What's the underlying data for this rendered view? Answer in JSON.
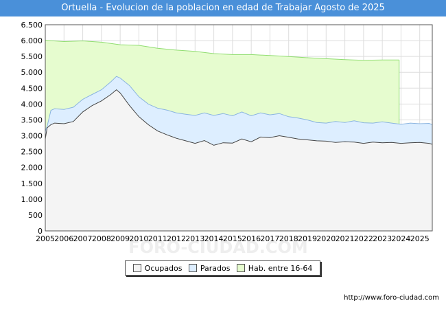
{
  "title": "Ortuella - Evolucion de la poblacion en edad de Trabajar Agosto de 2025",
  "source": "http://www.foro-ciudad.com",
  "watermark": "FORO-CIUDAD.COM",
  "chart_data": {
    "type": "area",
    "title": "Ortuella - Evolucion de la poblacion en edad de Trabajar Agosto de 2025",
    "xlabel": "",
    "ylabel": "",
    "xlim": [
      2005,
      2025.67
    ],
    "ylim": [
      0,
      6500
    ],
    "yticks": [
      0,
      500,
      1000,
      1500,
      2000,
      2500,
      3000,
      3500,
      4000,
      4500,
      5000,
      5500,
      6000,
      6500
    ],
    "ytick_labels": [
      "0",
      "500",
      "1.000",
      "1.500",
      "2.000",
      "2.500",
      "3.000",
      "3.500",
      "4.000",
      "4.500",
      "5.000",
      "5.500",
      "6.000",
      "6.500"
    ],
    "xticks": [
      2005,
      2006,
      2007,
      2008,
      2009,
      2010,
      2011,
      2012,
      2013,
      2014,
      2015,
      2016,
      2017,
      2018,
      2019,
      2020,
      2021,
      2022,
      2023,
      2024,
      2025
    ],
    "xtick_labels": [
      "2005",
      "2006",
      "2007",
      "2008",
      "2009",
      "2010",
      "2011",
      "2012",
      "2013",
      "2014",
      "2015",
      "2016",
      "2017",
      "2018",
      "2019",
      "2020",
      "2021",
      "2022",
      "2023",
      "2024",
      "2025"
    ],
    "grid": true,
    "legend_position": "bottom",
    "colors": {
      "hab_fill": "#e6fccf",
      "hab_line": "#90dd70",
      "parados_fill": "#ddeeff",
      "parados_line": "#8ab4e0",
      "ocupados_fill": "#f4f4f4",
      "ocupados_line": "#444444"
    },
    "series": [
      {
        "name": "Hab. entre 16-64",
        "x": [
          2005,
          2006,
          2007,
          2008,
          2009,
          2010,
          2011,
          2012,
          2013,
          2014,
          2015,
          2016,
          2017,
          2018,
          2019,
          2020,
          2021,
          2022,
          2023,
          2023.9
        ],
        "values": [
          6010,
          5970,
          5990,
          5950,
          5870,
          5850,
          5760,
          5700,
          5660,
          5590,
          5560,
          5560,
          5530,
          5500,
          5460,
          5430,
          5400,
          5380,
          5390,
          5390
        ]
      },
      {
        "name": "Parados",
        "x": [
          2005,
          2005.1,
          2005.3,
          2005.5,
          2006,
          2006.5,
          2007,
          2007.5,
          2008,
          2008.5,
          2008.8,
          2009,
          2009.5,
          2010,
          2010.5,
          2011,
          2011.5,
          2012,
          2012.5,
          2013,
          2013.5,
          2014,
          2014.5,
          2015,
          2015.5,
          2016,
          2016.5,
          2017,
          2017.5,
          2018,
          2018.5,
          2019,
          2019.5,
          2020,
          2020.5,
          2021,
          2021.5,
          2022,
          2022.5,
          2023,
          2023.5,
          2024,
          2024.5,
          2025,
          2025.5,
          2025.67
        ],
        "values": [
          3150,
          3300,
          3800,
          3850,
          3830,
          3900,
          4150,
          4300,
          4450,
          4700,
          4870,
          4820,
          4580,
          4230,
          4000,
          3870,
          3810,
          3720,
          3680,
          3640,
          3720,
          3640,
          3700,
          3630,
          3750,
          3630,
          3720,
          3660,
          3700,
          3600,
          3560,
          3500,
          3420,
          3400,
          3450,
          3420,
          3470,
          3410,
          3400,
          3440,
          3400,
          3360,
          3400,
          3380,
          3390,
          3350
        ]
      },
      {
        "name": "Ocupados",
        "x": [
          2005,
          2005.1,
          2005.3,
          2005.5,
          2006,
          2006.5,
          2007,
          2007.5,
          2008,
          2008.5,
          2008.8,
          2009,
          2009.5,
          2010,
          2010.5,
          2011,
          2011.5,
          2012,
          2012.5,
          2013,
          2013.5,
          2014,
          2014.5,
          2015,
          2015.5,
          2016,
          2016.5,
          2017,
          2017.5,
          2018,
          2018.5,
          2019,
          2019.5,
          2020,
          2020.5,
          2021,
          2021.5,
          2022,
          2022.5,
          2023,
          2023.5,
          2024,
          2024.5,
          2025,
          2025.5,
          2025.67
        ],
        "values": [
          2900,
          3250,
          3350,
          3400,
          3380,
          3450,
          3750,
          3950,
          4100,
          4300,
          4450,
          4350,
          3950,
          3600,
          3350,
          3150,
          3030,
          2920,
          2840,
          2760,
          2850,
          2700,
          2780,
          2770,
          2900,
          2810,
          2960,
          2940,
          3000,
          2950,
          2900,
          2870,
          2840,
          2830,
          2790,
          2810,
          2800,
          2760,
          2800,
          2780,
          2790,
          2760,
          2780,
          2790,
          2760,
          2730
        ]
      }
    ]
  },
  "legend": {
    "items": [
      {
        "label": "Ocupados",
        "color": "#f4f4f4"
      },
      {
        "label": "Parados",
        "color": "#ddeeff"
      },
      {
        "label": "Hab. entre 16-64",
        "color": "#e6fccf"
      }
    ]
  }
}
